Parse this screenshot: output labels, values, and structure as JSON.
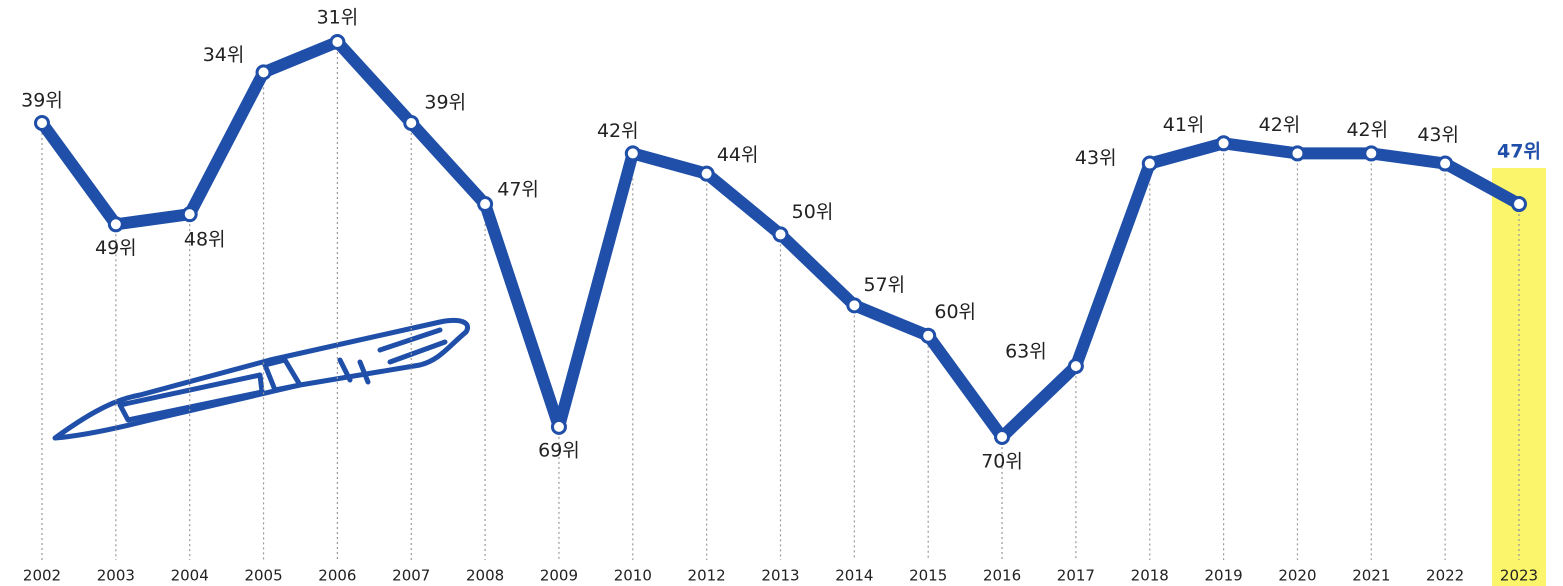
{
  "chart_data": {
    "type": "line",
    "categories": [
      "2002",
      "2003",
      "2004",
      "2005",
      "2006",
      "2007",
      "2008",
      "2009",
      "2010",
      "2012",
      "2013",
      "2014",
      "2015",
      "2016",
      "2017",
      "2018",
      "2019",
      "2020",
      "2021",
      "2022",
      "2023"
    ],
    "series": [
      {
        "color": "#1f4fa8",
        "values": [
          39,
          49,
          48,
          34,
          31,
          39,
          47,
          69,
          42,
          44,
          50,
          57,
          60,
          70,
          63,
          43,
          41,
          42,
          42,
          43,
          47
        ],
        "value_labels": [
          "39위",
          "49위",
          "48위",
          "34위",
          "31위",
          "39위",
          "47위",
          "69위",
          "42위",
          "44위",
          "50위",
          "57위",
          "60위",
          "70위",
          "63위",
          "43위",
          "41위",
          "42위",
          "42위",
          "43위",
          "47위"
        ]
      }
    ],
    "y_reversed": true,
    "highlight": "2023"
  }
}
